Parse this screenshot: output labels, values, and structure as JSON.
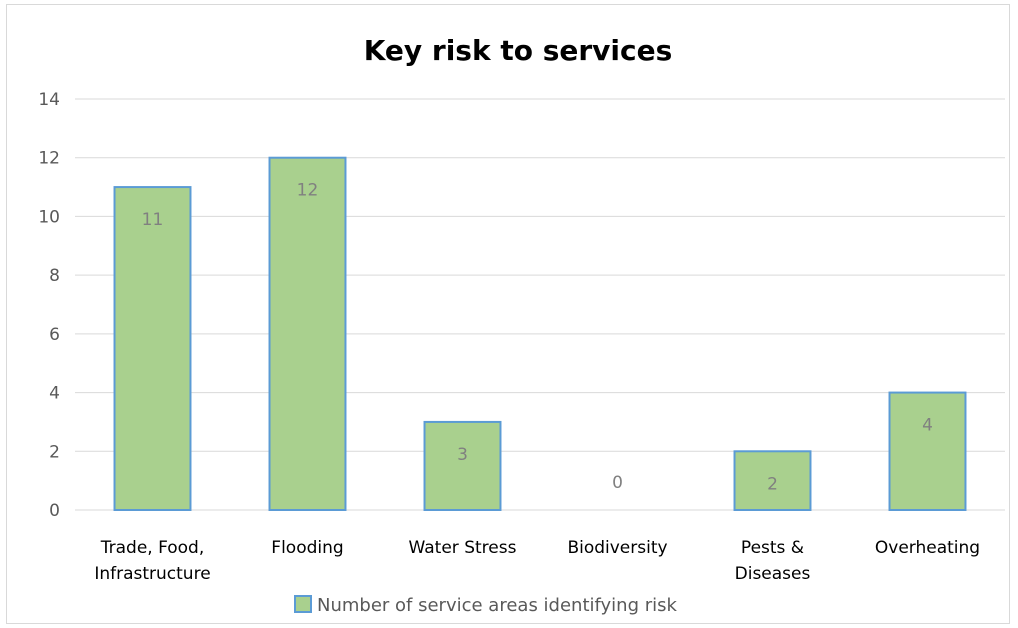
{
  "chart_data": {
    "type": "bar",
    "title": "Key risk to services",
    "categories": [
      [
        "Trade, Food,",
        "Infrastructure"
      ],
      [
        "Flooding"
      ],
      [
        "Water Stress"
      ],
      [
        "Biodiversity"
      ],
      [
        "Pests &",
        "Diseases"
      ],
      [
        "Overheating"
      ]
    ],
    "series": [
      {
        "name": "Number of service areas identifying risk",
        "values": [
          11,
          12,
          3,
          0,
          2,
          4
        ]
      }
    ],
    "ylim": [
      0,
      14
    ],
    "yticks": [
      "0",
      "2",
      "4",
      "6",
      "8",
      "10",
      "12",
      "14"
    ],
    "grid": true,
    "legend_position": "bottom",
    "colors": {
      "bar_fill": "#a9d08e",
      "bar_stroke": "#5b9bd5",
      "grid": "#d9d9d9"
    }
  }
}
